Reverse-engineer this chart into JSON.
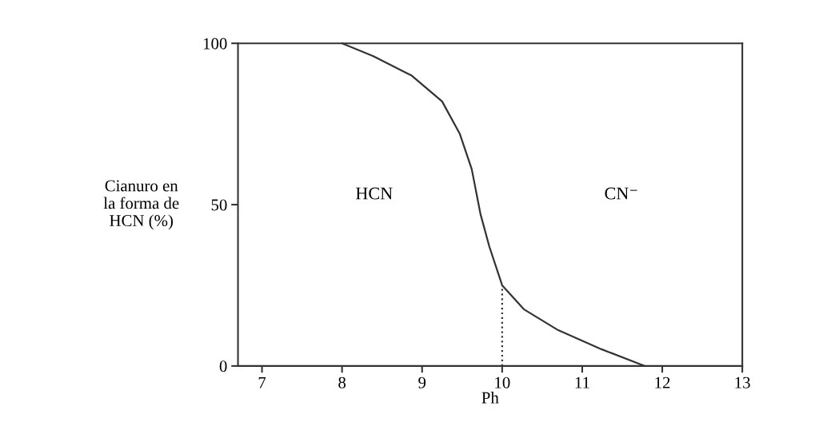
{
  "chart_data": {
    "type": "line",
    "xlabel": "Ph",
    "ylabel": "Cianuro en\nla forma de\nHCN (%)",
    "xlim": [
      6.7,
      13
    ],
    "xticks": [
      7,
      8,
      9,
      10,
      11,
      12,
      13
    ],
    "ylim": [
      0,
      100
    ],
    "yticks": [
      0,
      50,
      100
    ],
    "grid": false,
    "legend": false,
    "marker": "none",
    "annotations": [
      "HCN",
      "CN⁻"
    ],
    "series": [
      {
        "color": "#333333",
        "line_style": "solid",
        "x": [
          8.0,
          8.39,
          8.87,
          9.25,
          9.47,
          9.62,
          9.73,
          9.84,
          10.0,
          10.27,
          10.7,
          11.24,
          11.78
        ],
        "values": [
          100,
          96,
          90,
          82,
          72,
          61,
          47,
          37,
          25,
          17.6,
          11.1,
          5.2,
          0
        ]
      },
      {
        "color": "#333333",
        "line_style": "dotted",
        "x": [
          10,
          10
        ],
        "values": [
          0,
          25
        ]
      }
    ]
  }
}
